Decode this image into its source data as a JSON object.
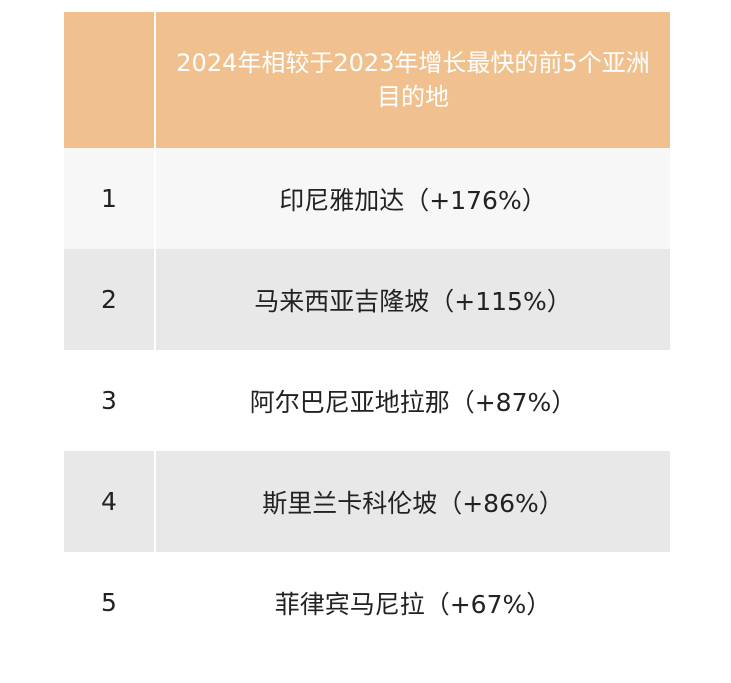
{
  "table": {
    "header": {
      "rank": "",
      "title": "2024年相较于2023年增长最快的前5个亚洲目的地"
    },
    "rows": [
      {
        "rank": "1",
        "destination": "印尼雅加达（+176%）"
      },
      {
        "rank": "2",
        "destination": "马来西亚吉隆坡（+115%）"
      },
      {
        "rank": "3",
        "destination": "阿尔巴尼亚地拉那（+87%）"
      },
      {
        "rank": "4",
        "destination": "斯里兰卡科伦坡（+86%）"
      },
      {
        "rank": "5",
        "destination": "菲律宾马尼拉（+67%）"
      }
    ]
  },
  "colors": {
    "header_bg": "#f0c18e",
    "row_light": "#f7f7f7",
    "row_gray": "#e8e8e8",
    "row_white": "#ffffff"
  }
}
